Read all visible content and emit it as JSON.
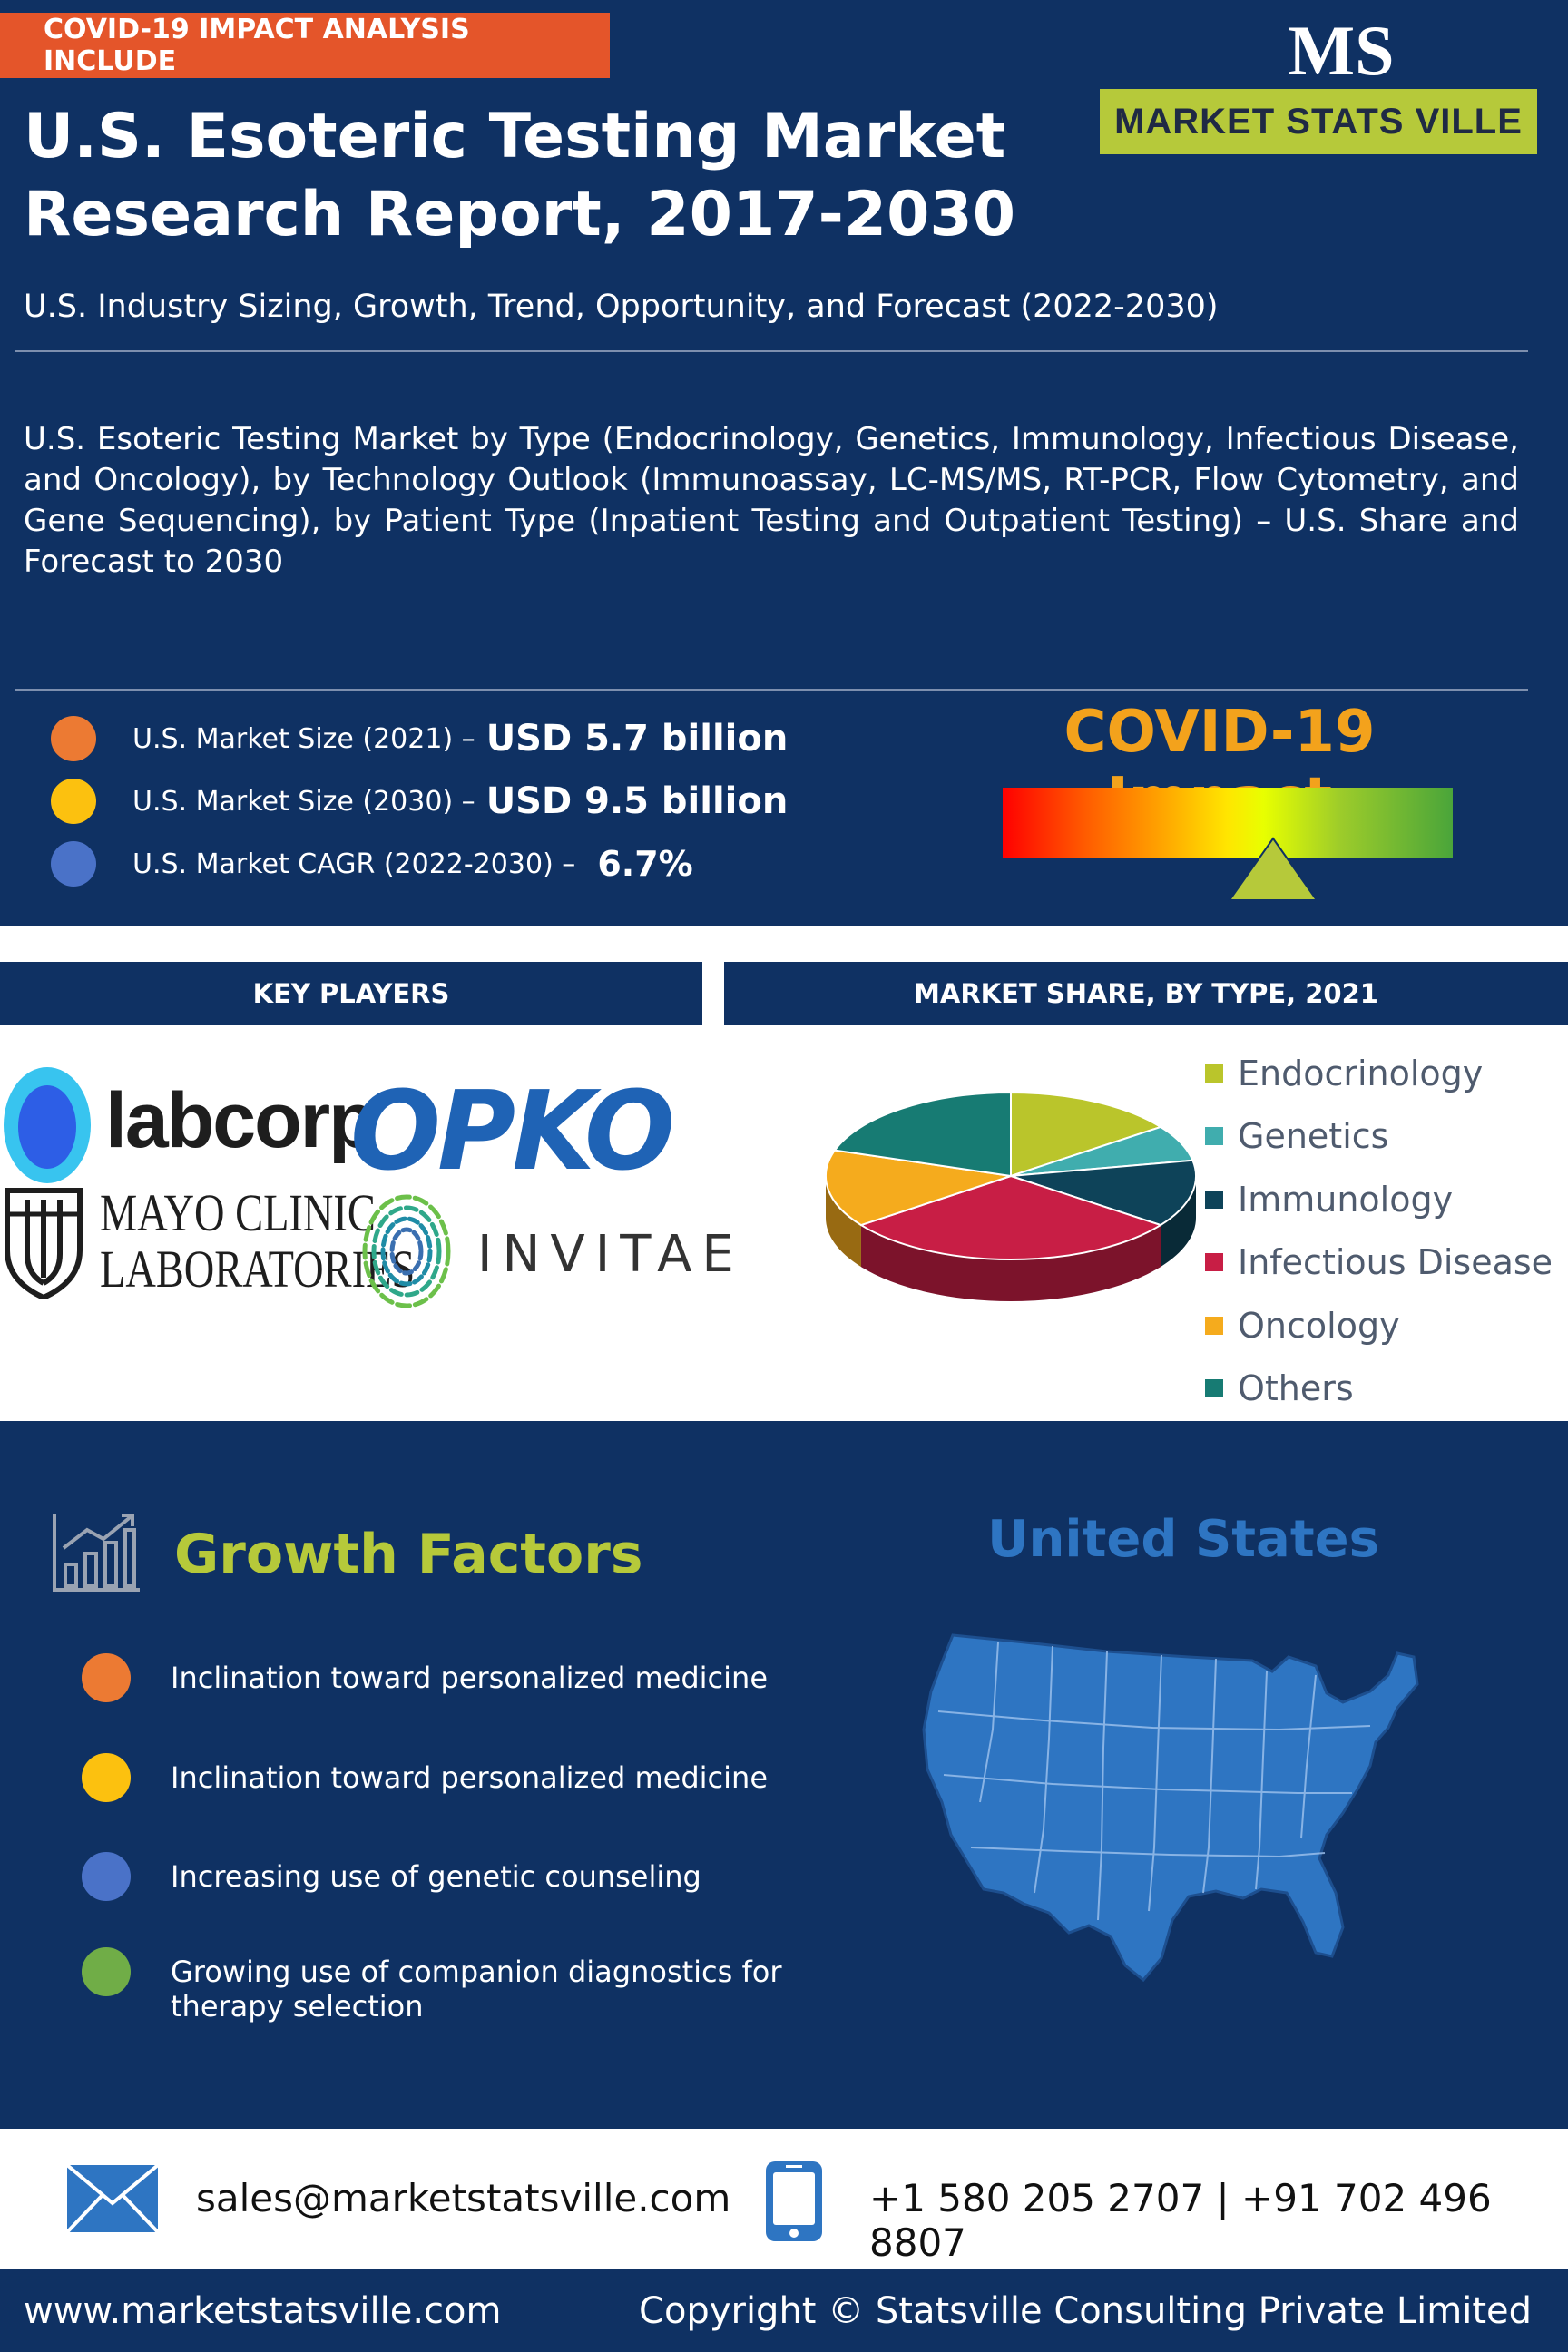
{
  "header": {
    "tag": "COVID-19 IMPACT ANALYSIS INCLUDE",
    "title_line1": "U.S. Esoteric Testing Market",
    "title_line2": "Research Report, 2017-2030",
    "subtitle": "U.S. Industry Sizing, Growth, Trend, Opportunity, and Forecast (2022-2030)",
    "description": "U.S. Esoteric Testing Market by Type (Endocrinology, Genetics, Immunology, Infectious Disease, and Oncology), by Technology Outlook (Immunoassay, LC-MS/MS, RT-PCR, Flow Cytometry, and Gene Sequencing), by Patient Type (Inpatient Testing and Outpatient Testing) – U.S. Share and Forecast to 2030"
  },
  "brand": {
    "logo_letters": "MS",
    "logo_name": "MARKET STATS VILLE",
    "colors": {
      "navy": "#0f3163",
      "olive": "#b6c93a",
      "orange": "#e4552a"
    }
  },
  "stats": [
    {
      "label": "U.S. Market Size (2021) –",
      "value": "USD 5.7 billion",
      "color": "#ec7a33"
    },
    {
      "label": "U.S. Market Size (2030) –",
      "value": "USD 9.5 billion",
      "color": "#fcc10f"
    },
    {
      "label": "U.S. Market CAGR (2022-2030) –",
      "value": "6.7%",
      "color": "#4a72c8"
    }
  ],
  "covid": {
    "title": "COVID-19 Impact",
    "gauge_level": 0.6
  },
  "sections": {
    "key_players": "KEY PLAYERS",
    "market_share": "MARKET SHARE, BY TYPE, 2021"
  },
  "key_players": {
    "labcorp": "labcorp",
    "opko": "OPKO",
    "mayo_line1": "MAYO CLINIC",
    "mayo_line2": "LABORATORIES",
    "invitae": "INVITAE"
  },
  "chart_data": {
    "type": "pie",
    "title": "MARKET SHARE, BY TYPE, 2021",
    "categories": [
      "Endocrinology",
      "Genetics",
      "Immunology",
      "Infectious Disease",
      "Oncology",
      "Others"
    ],
    "values": [
      15,
      7,
      13,
      30,
      15,
      20
    ],
    "colors": [
      "#bac52b",
      "#40adae",
      "#0e4359",
      "#c81e45",
      "#f5ab1d",
      "#177b73"
    ],
    "legend_position": "right"
  },
  "growth": {
    "title": "Growth Factors",
    "items": [
      {
        "text": "Inclination toward personalized medicine",
        "color": "#ec7a33"
      },
      {
        "text": "Inclination toward personalized medicine",
        "color": "#fcc10f"
      },
      {
        "text": "Increasing use of genetic counseling",
        "color": "#4a72c8"
      },
      {
        "text": "Growing use of companion diagnostics for therapy selection",
        "color": "#70ad47"
      }
    ]
  },
  "map": {
    "title": "United States",
    "color": "#2e75c2"
  },
  "contact": {
    "email": "sales@marketstatsville.com",
    "phone": "+1 580 205 2707 | +91 702 496 8807"
  },
  "footer": {
    "website": "www.marketstatsville.com",
    "copyright": "Copyright © Statsville Consulting Private Limited"
  }
}
